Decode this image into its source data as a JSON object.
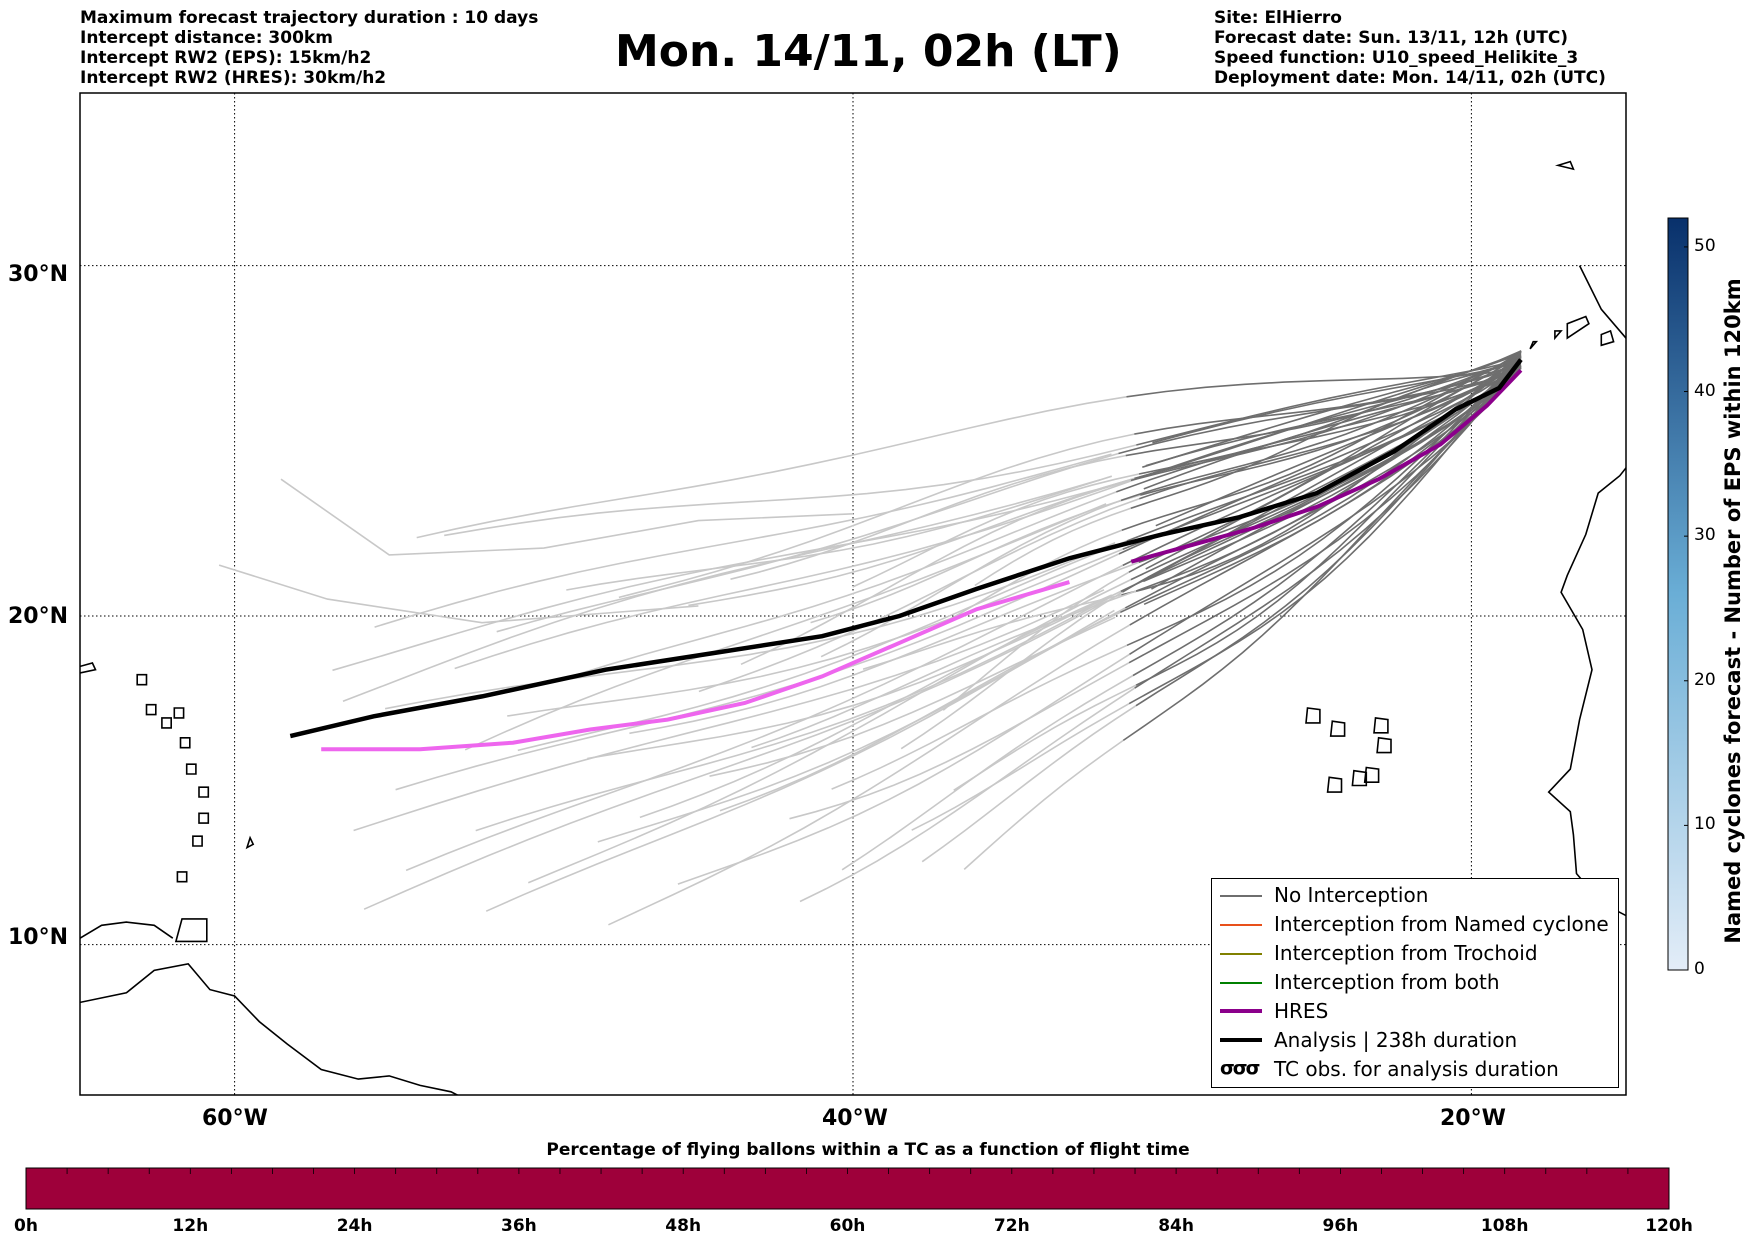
{
  "header_left": [
    "Maximum forecast trajectory duration : 10 days",
    "Intercept distance: 300km",
    "Intercept RW2 (EPS):  15km/h2",
    "Intercept RW2 (HRES): 30km/h2"
  ],
  "title": "Mon. 14/11, 02h (LT)",
  "header_right": [
    "Site: ElHierro",
    "Forecast date: Sun. 13/11, 12h (UTC)",
    "Speed function: U10_speed_Helikite_3",
    "Deployment date: Mon. 14/11, 02h (UTC)"
  ],
  "map": {
    "lat_labels": [
      "30°N",
      "20°N",
      "10°N"
    ],
    "lon_labels": [
      "60°W",
      "40°W",
      "20°W"
    ],
    "lat_range": [
      5.3,
      34.6
    ],
    "lon_range": [
      -65,
      -15
    ],
    "grid": "dotted",
    "colors": {
      "no_interception": "#6e6e6e",
      "no_interception_early": "#c8c8c8",
      "hres": "#8b008b",
      "hres_early": "#ee66ee",
      "analysis": "#000000",
      "named_cyclone": "#e8501a",
      "trochoid": "#808000",
      "both": "#008000"
    }
  },
  "legend": [
    {
      "label": "No Interception",
      "color": "#6e6e6e",
      "style": "thin"
    },
    {
      "label": "Interception from Named cyclone",
      "color": "#e8501a",
      "style": "thin"
    },
    {
      "label": "Interception from Trochoid",
      "color": "#808000",
      "style": "thin"
    },
    {
      "label": "Interception from both",
      "color": "#008000",
      "style": "thin"
    },
    {
      "label": "HRES",
      "color": "#8b008b",
      "style": "thick"
    },
    {
      "label": "Analysis | 238h duration",
      "color": "#000000",
      "style": "thick"
    },
    {
      "label": "TC obs. for analysis duration",
      "symbol": "σσσ",
      "style": "symbol"
    }
  ],
  "colorbar_right": {
    "label": "Named cyclones forecast - Number of EPS within 120km",
    "ticks": [
      "0",
      "10",
      "20",
      "30",
      "40",
      "50"
    ],
    "range": [
      0,
      52
    ],
    "color_low": "#e3edf8",
    "color_high": "#08306b"
  },
  "colorbar_bottom": {
    "title": "Percentage of flying ballons within a TC as a function of flight time",
    "ticks": [
      "0h",
      "12h",
      "24h",
      "36h",
      "48h",
      "60h",
      "72h",
      "84h",
      "96h",
      "108h",
      "120h"
    ],
    "color": "#9e003a"
  },
  "trajectories": {
    "origin": {
      "lon": -18.4,
      "lat": 27.4
    },
    "analysis": [
      [
        -18.4,
        27.4
      ],
      [
        -19.1,
        26.6
      ],
      [
        -20.5,
        26.0
      ],
      [
        -22.5,
        24.8
      ],
      [
        -25,
        23.6
      ],
      [
        -27.5,
        22.9
      ],
      [
        -30,
        22.4
      ],
      [
        -33,
        21.7
      ],
      [
        -36,
        20.8
      ],
      [
        -38.5,
        20.0
      ],
      [
        -41,
        19.4
      ],
      [
        -44.5,
        18.9
      ],
      [
        -48,
        18.4
      ],
      [
        -52,
        17.6
      ],
      [
        -55.5,
        17.0
      ],
      [
        -58.2,
        16.4
      ]
    ],
    "hres": [
      [
        -18.4,
        27.1
      ],
      [
        -19.5,
        26.1
      ],
      [
        -21,
        25.0
      ],
      [
        -23,
        24.0
      ],
      [
        -25,
        23.2
      ],
      [
        -27,
        22.6
      ],
      [
        -29,
        22.1
      ],
      [
        -31,
        21.6
      ],
      [
        -33,
        21.0
      ],
      [
        -36,
        20.2
      ],
      [
        -38.5,
        19.2
      ],
      [
        -41,
        18.2
      ],
      [
        -43.5,
        17.4
      ],
      [
        -46,
        16.9
      ],
      [
        -48.5,
        16.6
      ],
      [
        -51,
        16.2
      ],
      [
        -54,
        16.0
      ],
      [
        -57.2,
        16.0
      ]
    ],
    "hres_dark_until_lon": -31.5,
    "ensemble_break_lon": -31.5
  }
}
